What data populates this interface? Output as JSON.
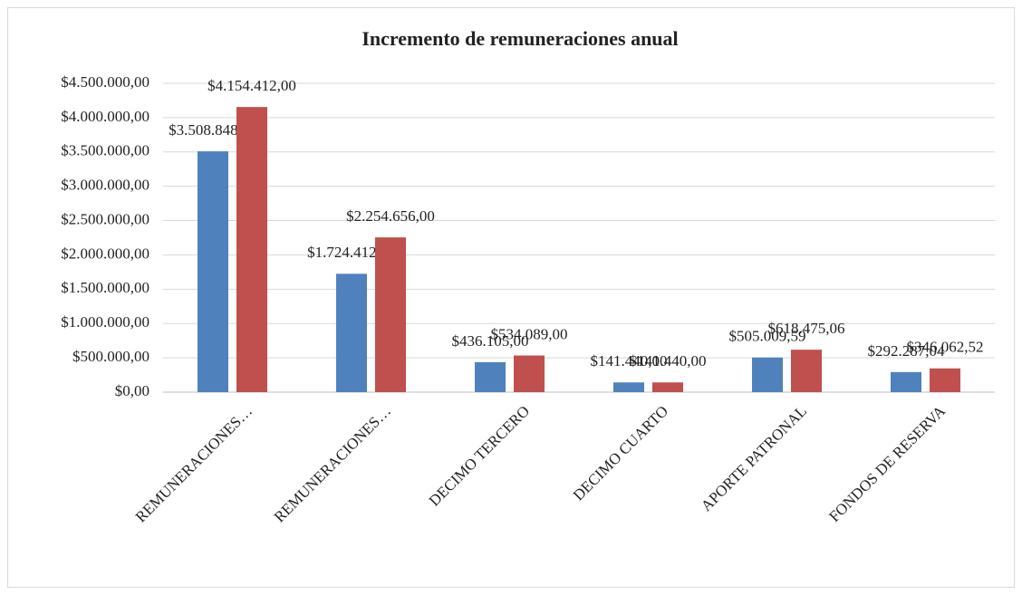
{
  "chart_data": {
    "type": "bar",
    "title": "Incremento de remuneraciones anual",
    "categories": [
      "REMUNERACIONES…",
      "REMUNERACIONES…",
      "DECIMO TERCERO",
      "DECIMO CUARTO",
      "APORTE PATRONAL",
      "FONDOS DE RESERVA"
    ],
    "series": [
      {
        "color": "#4f81bd",
        "values": [
          3508848,
          1724412,
          436105,
          141440,
          505009.59,
          292287.04
        ],
        "value_labels": [
          "$3.508.848,00",
          "$1.724.412,00",
          "$436.105,00",
          "$141.440,00",
          "$505.009,59",
          "$292.287,04"
        ]
      },
      {
        "color": "#c0504d",
        "values": [
          4154412,
          2254656,
          534089,
          141440,
          618475.06,
          346062.52
        ],
        "value_labels": [
          "$4.154.412,00",
          "$2.254.656,00",
          "$534.089,00",
          "$141.440,00",
          "$618.475,06",
          "$346.062,52"
        ]
      }
    ],
    "ylim": [
      0,
      4500000
    ],
    "yticks": [
      {
        "value": 0,
        "label": "$0,00"
      },
      {
        "value": 500000,
        "label": "$500.000,00"
      },
      {
        "value": 1000000,
        "label": "$1.000.000,00"
      },
      {
        "value": 1500000,
        "label": "$1.500.000,00"
      },
      {
        "value": 2000000,
        "label": "$2.000.000,00"
      },
      {
        "value": 2500000,
        "label": "$2.500.000,00"
      },
      {
        "value": 3000000,
        "label": "$3.000.000,00"
      },
      {
        "value": 3500000,
        "label": "$3.500.000,00"
      },
      {
        "value": 4000000,
        "label": "$4.000.000,00"
      },
      {
        "value": 4500000,
        "label": "$4.500.000,00"
      }
    ],
    "grid": true
  }
}
